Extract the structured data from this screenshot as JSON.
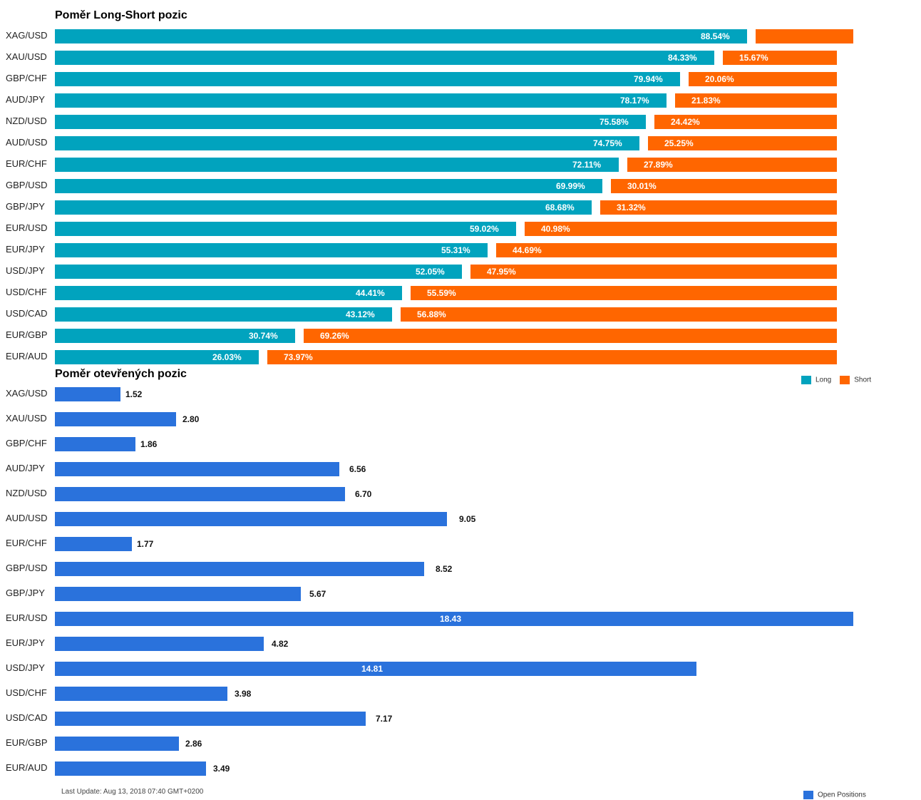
{
  "chart_data": [
    {
      "type": "bar",
      "orientation": "horizontal",
      "stacked": true,
      "title": "Poměr Long-Short pozic",
      "categories": [
        "XAG/USD",
        "XAU/USD",
        "GBP/CHF",
        "AUD/JPY",
        "NZD/USD",
        "AUD/USD",
        "EUR/CHF",
        "GBP/USD",
        "GBP/JPY",
        "EUR/USD",
        "EUR/JPY",
        "USD/JPY",
        "USD/CHF",
        "USD/CAD",
        "EUR/GBP",
        "EUR/AUD"
      ],
      "series": [
        {
          "name": "Long",
          "color": "#01a3be",
          "values": [
            88.54,
            84.33,
            79.94,
            78.17,
            75.58,
            74.75,
            72.11,
            69.99,
            68.68,
            59.02,
            55.31,
            52.05,
            44.41,
            43.12,
            30.74,
            26.03
          ],
          "labels": [
            "88.54%",
            "84.33%",
            "79.94%",
            "78.17%",
            "75.58%",
            "74.75%",
            "72.11%",
            "69.99%",
            "68.68%",
            "59.02%",
            "55.31%",
            "52.05%",
            "44.41%",
            "43.12%",
            "30.74%",
            "26.03%"
          ]
        },
        {
          "name": "Short",
          "color": "#ff6600",
          "values": [
            11.46,
            15.67,
            20.06,
            21.83,
            24.42,
            25.25,
            27.89,
            30.01,
            31.32,
            40.98,
            44.69,
            47.95,
            55.59,
            56.88,
            69.26,
            73.97
          ],
          "labels": [
            "",
            "15.67%",
            "20.06%",
            "21.83%",
            "24.42%",
            "25.25%",
            "27.89%",
            "30.01%",
            "31.32%",
            "40.98%",
            "44.69%",
            "47.95%",
            "55.59%",
            "56.88%",
            "69.26%",
            "73.97%"
          ]
        }
      ],
      "legend": "bottom-right"
    },
    {
      "type": "bar",
      "orientation": "horizontal",
      "title": "Poměr otevřených pozic",
      "categories": [
        "XAG/USD",
        "XAU/USD",
        "GBP/CHF",
        "AUD/JPY",
        "NZD/USD",
        "AUD/USD",
        "EUR/CHF",
        "GBP/USD",
        "GBP/JPY",
        "EUR/USD",
        "EUR/JPY",
        "USD/JPY",
        "USD/CHF",
        "USD/CAD",
        "EUR/GBP",
        "EUR/AUD"
      ],
      "series": [
        {
          "name": "Open Positions",
          "color": "#2a72dc",
          "values": [
            1.52,
            2.8,
            1.86,
            6.56,
            6.7,
            9.05,
            1.77,
            8.52,
            5.67,
            18.43,
            4.82,
            14.81,
            3.98,
            7.17,
            2.86,
            3.49
          ],
          "labels": [
            "1.52",
            "2.80",
            "1.86",
            "6.56",
            "6.70",
            "9.05",
            "1.77",
            "8.52",
            "5.67",
            "18.43",
            "4.82",
            "14.81",
            "3.98",
            "7.17",
            "2.86",
            "3.49"
          ]
        }
      ],
      "legend": "bottom-right"
    }
  ],
  "footer": {
    "last_update": "Last Update: Aug 13, 2018 07:40 GMT+0200"
  }
}
